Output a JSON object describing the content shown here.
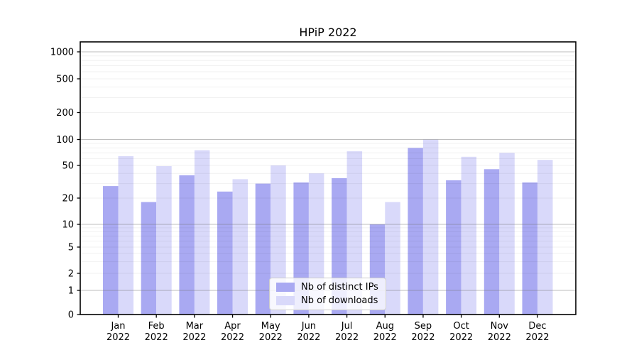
{
  "chart_data": {
    "type": "bar",
    "title": "HPiP 2022",
    "categories": [
      "Jan 2022",
      "Feb 2022",
      "Mar 2022",
      "Apr 2022",
      "May 2022",
      "Jun 2022",
      "Jul 2022",
      "Aug 2022",
      "Sep 2022",
      "Oct 2022",
      "Nov 2022",
      "Dec 2022"
    ],
    "series": [
      {
        "name": "Nb of distinct IPs",
        "color": "#a9a9f2",
        "values": [
          28,
          18,
          38,
          24,
          30,
          31,
          35,
          10,
          80,
          33,
          45,
          31
        ]
      },
      {
        "name": "Nb of downloads",
        "color": "#d9d9fa",
        "values": [
          64,
          49,
          75,
          34,
          50,
          40,
          73,
          18,
          100,
          63,
          70,
          58
        ]
      }
    ],
    "yscale": "symlog",
    "ylim": [
      0,
      1300
    ],
    "yticks": [
      0,
      1,
      2,
      5,
      10,
      20,
      50,
      100,
      200,
      500,
      1000
    ],
    "grid": "horizontal",
    "legend_position": "lower center",
    "axis_color": "#000000",
    "major_grid_color": "#c8c8c8",
    "minor_grid_color": "#efefef"
  }
}
